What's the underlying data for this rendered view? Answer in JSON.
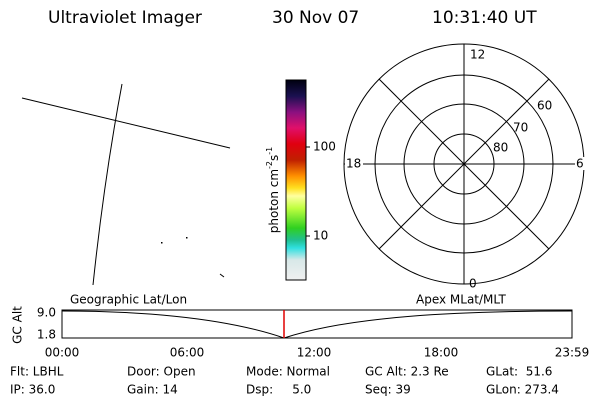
{
  "header": {
    "title": "Ultraviolet Imager",
    "date": "30 Nov 07",
    "time": "10:31:40 UT"
  },
  "colorbar": {
    "label": {
      "unit1": "photon cm",
      "exp1": "-2",
      "unit2": "s",
      "exp2": "-1"
    },
    "ticks": [
      "100",
      "10"
    ]
  },
  "polar": {
    "mlt_labels": [
      "12",
      "18",
      "6",
      "0"
    ],
    "lat_labels": [
      "60",
      "70",
      "80"
    ]
  },
  "altitude_plot": {
    "left_label": "Geographic Lat/Lon",
    "right_label": "Apex MLat/MLT",
    "axis_label": "GC Alt",
    "yticks": [
      "9.0",
      "1.8"
    ],
    "xticks": [
      "00:00",
      "06:00",
      "12:00",
      "18:00",
      "23:59"
    ]
  },
  "footer": {
    "rows": [
      [
        "Flt: LBHL",
        "Door: Open",
        "Mode: Normal",
        "GC Alt: 2.3 Re",
        "GLat:  51.6"
      ],
      [
        "IP: 36.0",
        "Gain: 14",
        "Dsp:     5.0",
        "Seq: 39",
        "GLon: 273.4"
      ]
    ]
  }
}
